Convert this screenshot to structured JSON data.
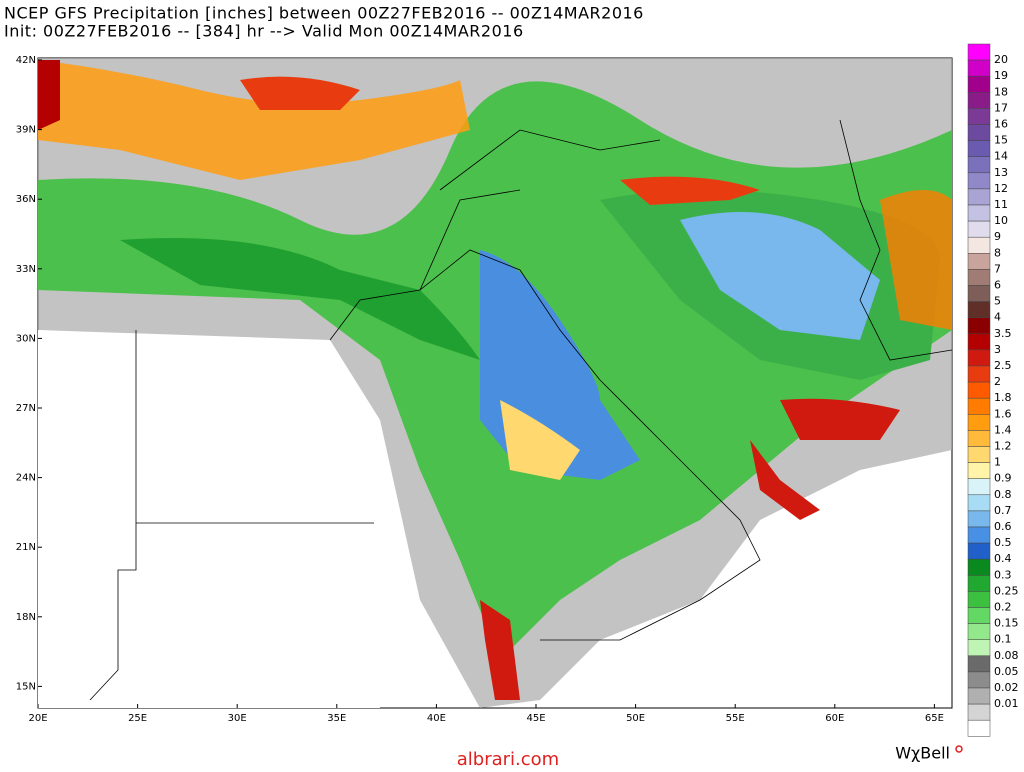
{
  "header": {
    "line1": "NCEP GFS Precipitation [inches] between 00Z27FEB2016 -- 00Z14MAR2016",
    "line2": "Init: 00Z27FEB2016 -- [384] hr --> Valid Mon 00Z14MAR2016"
  },
  "map": {
    "lat_labels": [
      "42N",
      "39N",
      "36N",
      "33N",
      "30N",
      "27N",
      "24N",
      "21N",
      "18N",
      "15N"
    ],
    "lon_labels": [
      "20E",
      "25E",
      "30E",
      "35E",
      "40E",
      "45E",
      "50E",
      "55E",
      "60E",
      "65E"
    ]
  },
  "colorbar": {
    "labels": [
      "20",
      "19",
      "18",
      "17",
      "16",
      "15",
      "14",
      "13",
      "12",
      "11",
      "10",
      "9",
      "8",
      "7",
      "6",
      "5",
      "4",
      "3.5",
      "3",
      "2.5",
      "2",
      "1.8",
      "1.6",
      "1.4",
      "1.2",
      "1",
      "0.9",
      "0.8",
      "0.7",
      "0.6",
      "0.5",
      "0.4",
      "0.3",
      "0.25",
      "0.2",
      "0.15",
      "0.1",
      "0.08",
      "0.05",
      "0.02",
      "0.01"
    ],
    "colors": [
      "#ff00ff",
      "#d000c8",
      "#a0008c",
      "#8a1c8a",
      "#7a3a96",
      "#6c4aa0",
      "#6a5ab0",
      "#7a70bc",
      "#9088c8",
      "#a8a4d4",
      "#c4c2e2",
      "#e0dcee",
      "#f4e6e0",
      "#c8a49c",
      "#a07c74",
      "#7e5e58",
      "#603028",
      "#8a0000",
      "#b40000",
      "#d01a10",
      "#e83c10",
      "#ff5a00",
      "#ff7c00",
      "#ff9c10",
      "#ffba3c",
      "#ffd870",
      "#fff4a8",
      "#d8f4f8",
      "#a8dcf4",
      "#78b8ec",
      "#4890e4",
      "#2060c8",
      "#0a8a1e",
      "#20a830",
      "#3cc040",
      "#64d864",
      "#94e88c",
      "#c0f4b4",
      "#6a6a6a",
      "#8c8c8c",
      "#b0b0b0",
      "#d4d4d4",
      "#ffffff"
    ]
  },
  "footer": {
    "site": "albrari.com",
    "brand": "WχBell"
  }
}
